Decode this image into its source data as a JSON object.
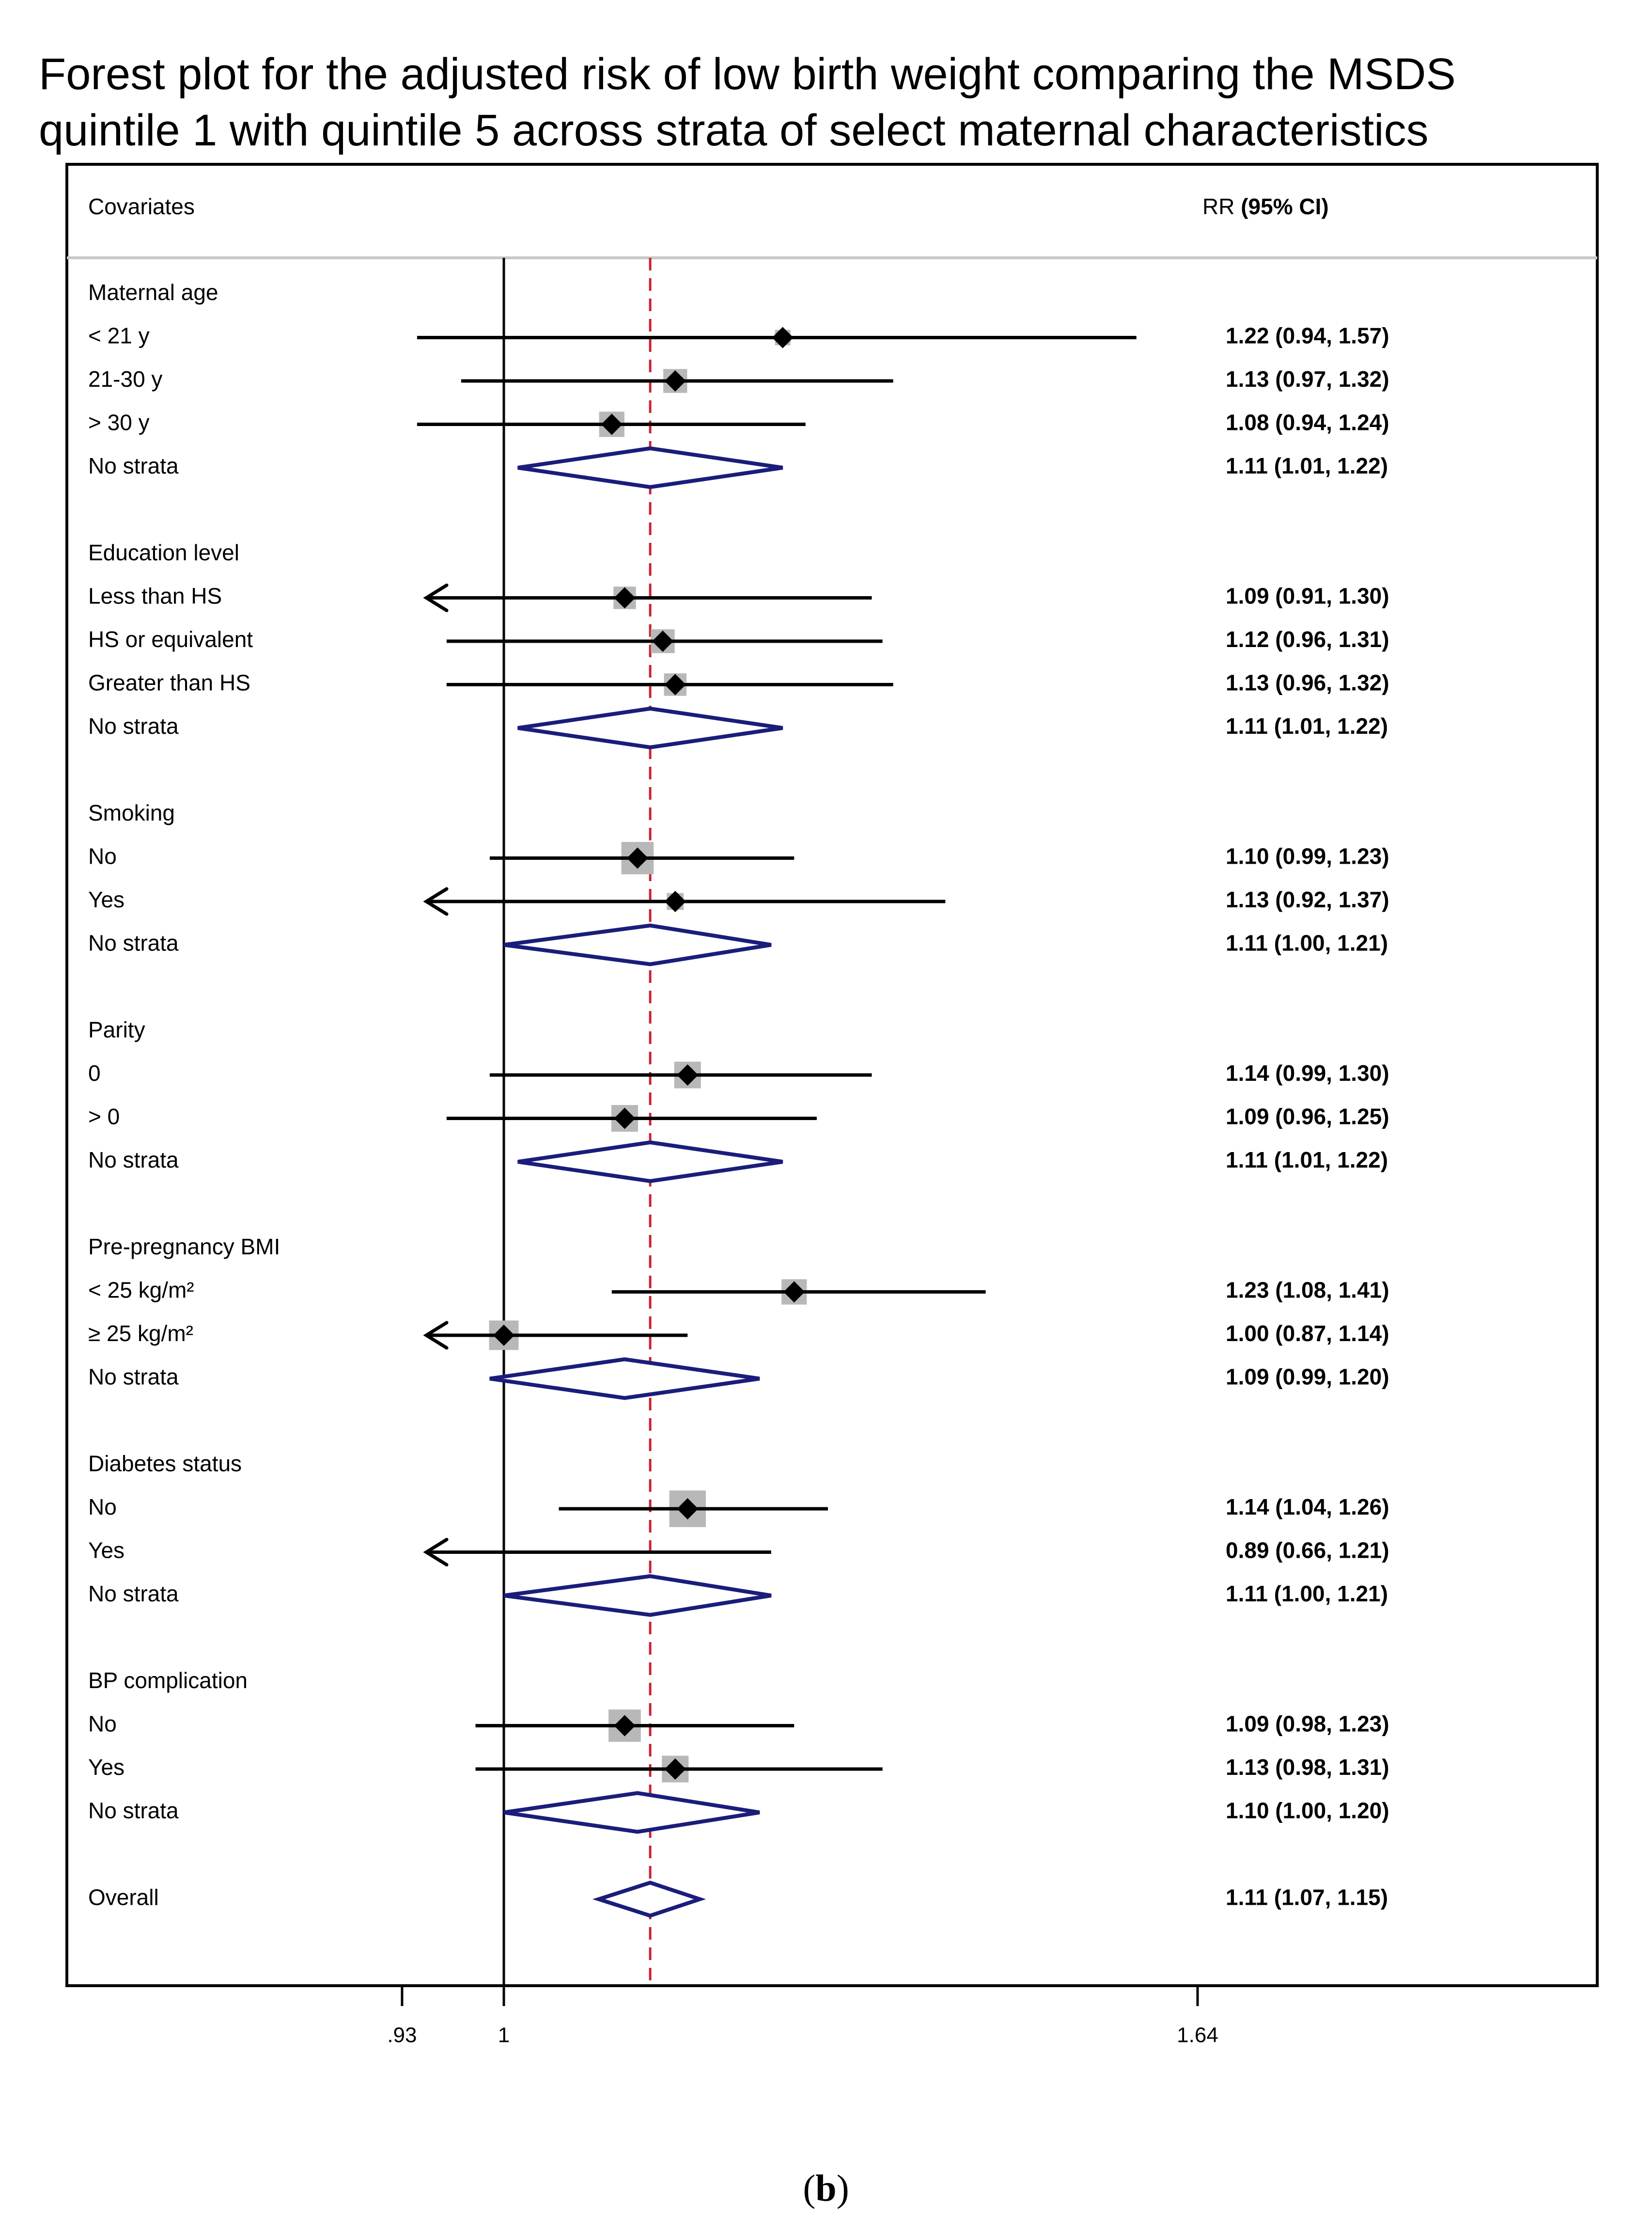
{
  "title_line1": "Forest plot for the adjusted risk of low birth weight comparing the MSDS",
  "title_line2": "quintile 1 with quintile 5 across strata of select maternal characteristics",
  "caption_open": "(",
  "caption_letter": "b",
  "caption_close": ")",
  "colors": {
    "summary": "#1a1d7a",
    "reference": "#cc2233",
    "box": "#b8b8b8",
    "line": "#000000"
  },
  "chart_data": {
    "type": "forest",
    "header": {
      "left": "Covariates",
      "right_prefix": "RR",
      "right_suffix": "(95% CI)"
    },
    "x_axis": {
      "scale": "log",
      "ticks": [
        {
          "value": 0.93,
          "label": ".93"
        },
        {
          "value": 1,
          "label": "1"
        },
        {
          "value": 1.64,
          "label": "1.64"
        }
      ],
      "null_line": 1,
      "overall_line": 1.11
    },
    "rows": [
      {
        "kind": "group",
        "label": "Maternal age"
      },
      {
        "kind": "est",
        "label": "< 21 y",
        "rr": 1.22,
        "lo": 0.94,
        "hi": 1.57,
        "text": "1.22 (0.94, 1.57)",
        "weight": 0.55
      },
      {
        "kind": "est",
        "label": "21-30 y",
        "rr": 1.13,
        "lo": 0.97,
        "hi": 1.32,
        "text": "1.13 (0.97, 1.32)",
        "weight": 0.85
      },
      {
        "kind": "est",
        "label": "> 30 y",
        "rr": 1.08,
        "lo": 0.94,
        "hi": 1.24,
        "text": "1.08 (0.94, 1.24)",
        "weight": 0.9
      },
      {
        "kind": "sum",
        "label": "No strata",
        "rr": 1.11,
        "lo": 1.01,
        "hi": 1.22,
        "text": "1.11 (1.01, 1.22)"
      },
      {
        "kind": "gap"
      },
      {
        "kind": "group",
        "label": "Education level"
      },
      {
        "kind": "est",
        "label": "Less than HS",
        "rr": 1.09,
        "lo": 0.91,
        "hi": 1.3,
        "text": "1.09 (0.91, 1.30)",
        "weight": 0.8,
        "arrow": true
      },
      {
        "kind": "est",
        "label": "HS or equivalent",
        "rr": 1.12,
        "lo": 0.96,
        "hi": 1.31,
        "text": "1.12 (0.96, 1.31)",
        "weight": 0.85
      },
      {
        "kind": "est",
        "label": "Greater than HS",
        "rr": 1.13,
        "lo": 0.96,
        "hi": 1.32,
        "text": "1.13 (0.96, 1.32)",
        "weight": 0.8
      },
      {
        "kind": "sum",
        "label": "No strata",
        "rr": 1.11,
        "lo": 1.01,
        "hi": 1.22,
        "text": "1.11 (1.01, 1.22)"
      },
      {
        "kind": "gap"
      },
      {
        "kind": "group",
        "label": "Smoking"
      },
      {
        "kind": "est",
        "label": "No",
        "rr": 1.1,
        "lo": 0.99,
        "hi": 1.23,
        "text": "1.10 (0.99, 1.23)",
        "weight": 1.15
      },
      {
        "kind": "est",
        "label": "Yes",
        "rr": 1.13,
        "lo": 0.92,
        "hi": 1.37,
        "text": "1.13 (0.92, 1.37)",
        "weight": 0.6,
        "arrow": true
      },
      {
        "kind": "sum",
        "label": "No strata",
        "rr": 1.11,
        "lo": 1.0,
        "hi": 1.21,
        "text": "1.11 (1.00, 1.21)"
      },
      {
        "kind": "gap"
      },
      {
        "kind": "group",
        "label": "Parity"
      },
      {
        "kind": "est",
        "label": "0",
        "rr": 1.14,
        "lo": 0.99,
        "hi": 1.3,
        "text": "1.14 (0.99, 1.30)",
        "weight": 0.95
      },
      {
        "kind": "est",
        "label": "> 0",
        "rr": 1.09,
        "lo": 0.96,
        "hi": 1.25,
        "text": "1.09 (0.96, 1.25)",
        "weight": 0.95
      },
      {
        "kind": "sum",
        "label": "No strata",
        "rr": 1.11,
        "lo": 1.01,
        "hi": 1.22,
        "text": "1.11 (1.01, 1.22)"
      },
      {
        "kind": "gap"
      },
      {
        "kind": "group",
        "label": "Pre-pregnancy BMI"
      },
      {
        "kind": "est",
        "label": "< 25 kg/m²",
        "rr": 1.23,
        "lo": 1.08,
        "hi": 1.41,
        "text": "1.23 (1.08, 1.41)",
        "weight": 0.9
      },
      {
        "kind": "est",
        "label": "≥ 25 kg/m²",
        "rr": 1.0,
        "lo": 0.87,
        "hi": 1.14,
        "text": "1.00 (0.87, 1.14)",
        "weight": 1.05,
        "arrow": true
      },
      {
        "kind": "sum",
        "label": "No strata",
        "rr": 1.09,
        "lo": 0.99,
        "hi": 1.2,
        "text": "1.09 (0.99, 1.20)"
      },
      {
        "kind": "gap"
      },
      {
        "kind": "group",
        "label": "Diabetes status"
      },
      {
        "kind": "est",
        "label": "No",
        "rr": 1.14,
        "lo": 1.04,
        "hi": 1.26,
        "text": "1.14 (1.04, 1.26)",
        "weight": 1.3
      },
      {
        "kind": "est",
        "label": "Yes",
        "rr": 0.89,
        "lo": 0.66,
        "hi": 1.21,
        "text": "0.89 (0.66, 1.21)",
        "arrow": true,
        "nobox": true
      },
      {
        "kind": "sum",
        "label": "No strata",
        "rr": 1.11,
        "lo": 1.0,
        "hi": 1.21,
        "text": "1.11 (1.00, 1.21)"
      },
      {
        "kind": "gap"
      },
      {
        "kind": "group",
        "label": "BP complication"
      },
      {
        "kind": "est",
        "label": "No",
        "rr": 1.09,
        "lo": 0.98,
        "hi": 1.23,
        "text": "1.09 (0.98, 1.23)",
        "weight": 1.15
      },
      {
        "kind": "est",
        "label": "Yes",
        "rr": 1.13,
        "lo": 0.98,
        "hi": 1.31,
        "text": "1.13 (0.98, 1.31)",
        "weight": 0.95
      },
      {
        "kind": "sum",
        "label": "No strata",
        "rr": 1.1,
        "lo": 1.0,
        "hi": 1.2,
        "text": "1.10 (1.00, 1.20)"
      },
      {
        "kind": "gap"
      },
      {
        "kind": "overall",
        "label": "Overall",
        "rr": 1.11,
        "lo": 1.07,
        "hi": 1.15,
        "text": "1.11 (1.07, 1.15)"
      }
    ]
  }
}
